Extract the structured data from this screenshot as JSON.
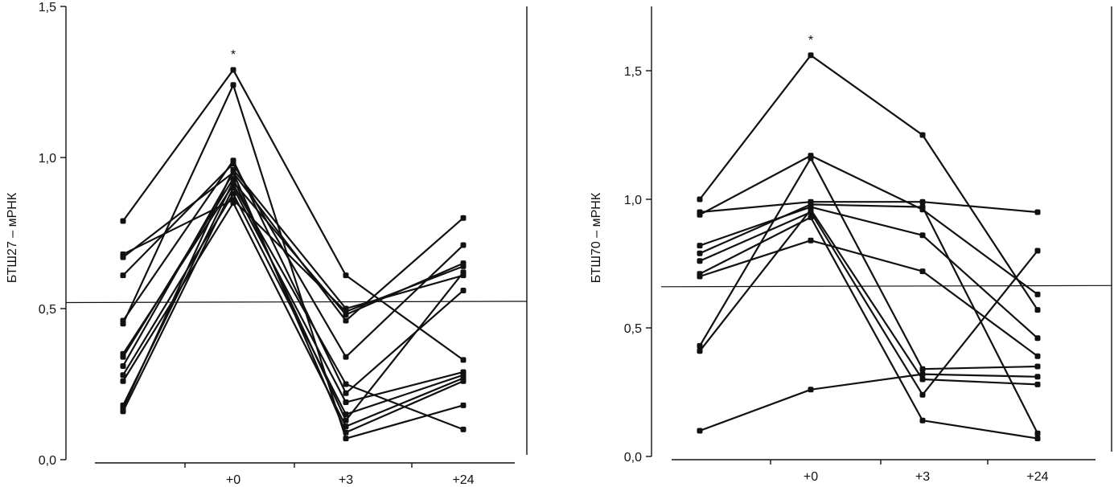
{
  "chart_data": [
    {
      "type": "line",
      "ylabel": "БТШ27 – мРНК",
      "ylim": [
        0,
        1.5
      ],
      "yticks": [
        "0,0",
        "0,5",
        "1,0",
        "1,5"
      ],
      "ytick_values": [
        0,
        0.5,
        1.0,
        1.5
      ],
      "categories": [
        "",
        "+0",
        "+3",
        "+24"
      ],
      "reference_y": 0.52,
      "significance_mark": {
        "category_index": 1,
        "text": "*"
      },
      "series": [
        {
          "values": [
            0.79,
            1.29,
            0.61,
            0.33
          ]
        },
        {
          "values": [
            0.68,
            0.86,
            0.49,
            0.64
          ]
        },
        {
          "values": [
            0.67,
            0.95,
            0.46,
            0.8
          ]
        },
        {
          "values": [
            0.61,
            0.98,
            0.34,
            0.71
          ]
        },
        {
          "values": [
            0.46,
            0.99,
            0.22,
            0.56
          ]
        },
        {
          "values": [
            0.45,
            1.24,
            0.07,
            0.18
          ]
        },
        {
          "values": [
            0.35,
            0.91,
            0.25,
            0.1
          ]
        },
        {
          "values": [
            0.34,
            0.93,
            0.13,
            0.62
          ]
        },
        {
          "values": [
            0.31,
            0.95,
            0.09,
            0.26
          ]
        },
        {
          "values": [
            0.28,
            0.88,
            0.15,
            0.28
          ]
        },
        {
          "values": [
            0.26,
            0.85,
            0.11,
            0.27
          ]
        },
        {
          "values": [
            0.18,
            0.92,
            0.48,
            0.65
          ]
        },
        {
          "values": [
            0.17,
            0.96,
            0.5,
            0.61
          ]
        },
        {
          "values": [
            0.16,
            0.9,
            0.19,
            0.29
          ]
        }
      ]
    },
    {
      "type": "line",
      "ylabel": "БТШ70 – мРНК",
      "ylim": [
        0,
        1.75
      ],
      "yticks": [
        "0,0",
        "0,5",
        "1,0",
        "1,5"
      ],
      "ytick_values": [
        0,
        0.5,
        1.0,
        1.5
      ],
      "categories": [
        "",
        "+0",
        "+3",
        "+24"
      ],
      "reference_y": 0.66,
      "significance_mark": {
        "category_index": 1,
        "text": "*"
      },
      "series": [
        {
          "values": [
            1.0,
            1.56,
            1.25,
            0.57
          ]
        },
        {
          "values": [
            0.95,
            0.99,
            0.99,
            0.95
          ]
        },
        {
          "values": [
            0.94,
            1.17,
            0.96,
            0.63
          ]
        },
        {
          "values": [
            0.82,
            0.97,
            0.86,
            0.46
          ]
        },
        {
          "values": [
            0.79,
            0.98,
            0.97,
            0.09
          ]
        },
        {
          "values": [
            0.76,
            0.95,
            0.24,
            0.8
          ]
        },
        {
          "values": [
            0.71,
            0.93,
            0.14,
            0.07
          ]
        },
        {
          "values": [
            0.7,
            0.84,
            0.72,
            0.39
          ]
        },
        {
          "values": [
            0.43,
            1.16,
            0.34,
            0.35
          ]
        },
        {
          "values": [
            0.41,
            0.96,
            0.3,
            0.28
          ]
        },
        {
          "values": [
            0.1,
            0.26,
            0.32,
            0.31
          ]
        }
      ]
    }
  ]
}
